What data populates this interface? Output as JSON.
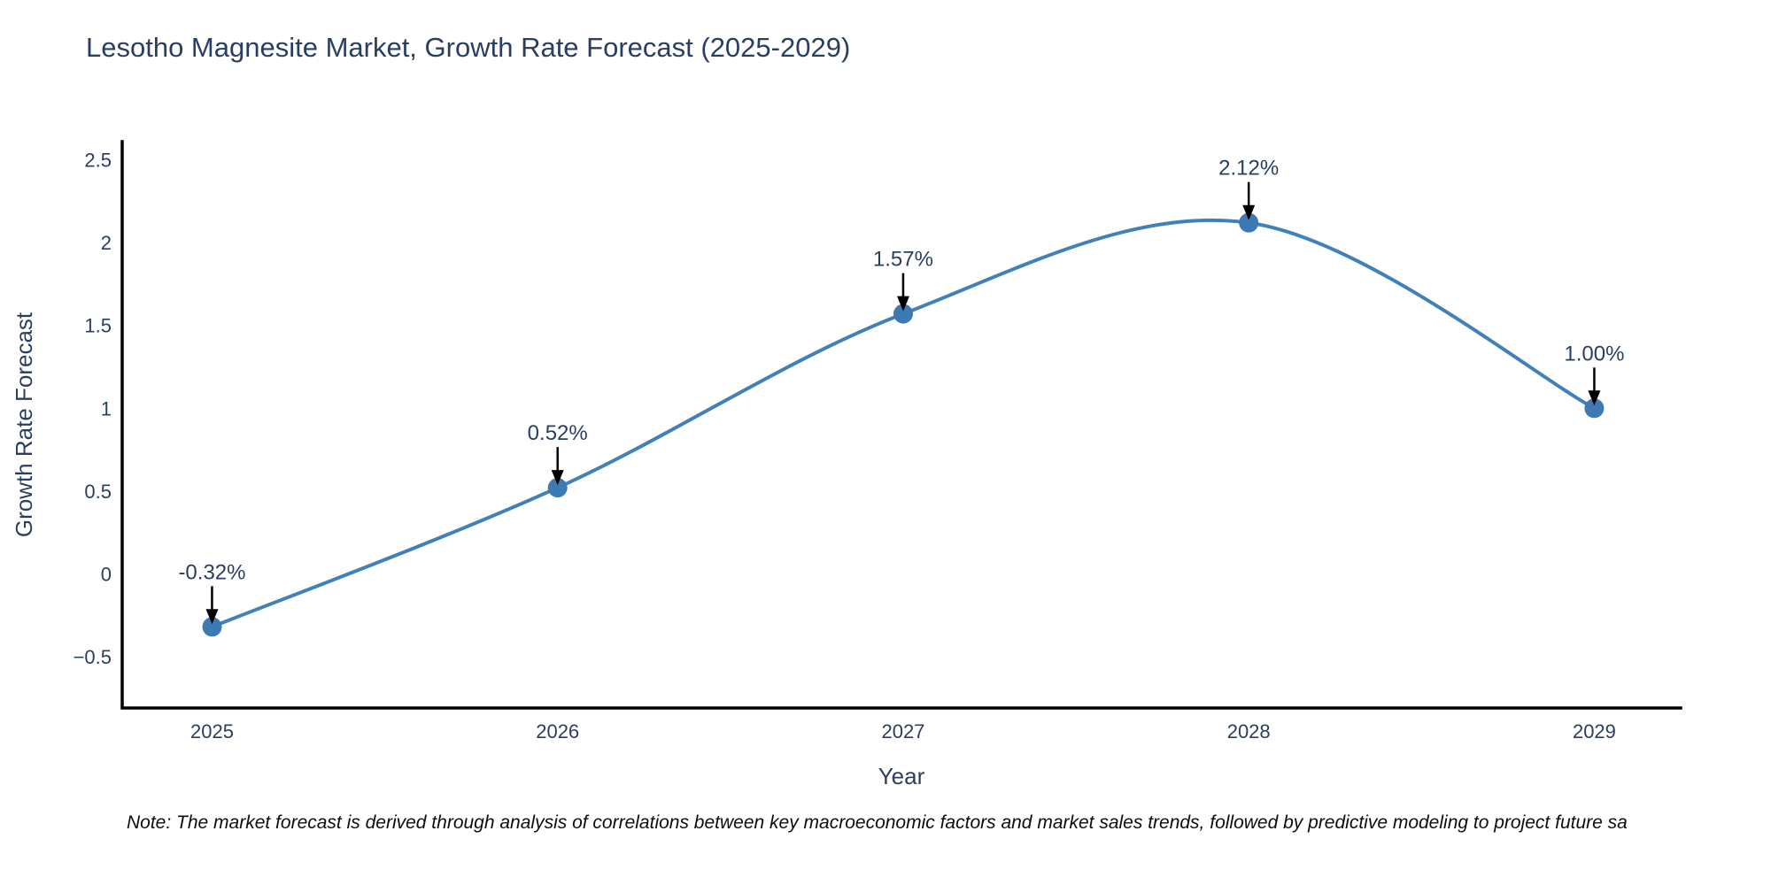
{
  "note": "Note: The market forecast is derived through analysis of correlations between key macroeconomic factors and market sales trends, followed by predictive modeling to project future sa",
  "colors": {
    "text": "#2a3f5f",
    "line": "#4181b8",
    "marker": "#3d7ab3",
    "spine": "#000000",
    "arrow": "#000000",
    "background": "#ffffff"
  },
  "chart_data": {
    "type": "line",
    "title": "Lesotho Magnesite Market, Growth Rate Forecast (2025-2029)",
    "xlabel": "Year",
    "ylabel": "Growth Rate Forecast",
    "x": [
      2025,
      2026,
      2027,
      2028,
      2029
    ],
    "values": [
      -0.32,
      0.52,
      1.57,
      2.12,
      1.0
    ],
    "point_labels": [
      "-0.32%",
      "0.52%",
      "1.57%",
      "2.12%",
      "1.00%"
    ],
    "xticks": [
      2025,
      2026,
      2027,
      2028,
      2029
    ],
    "xtick_labels": [
      "2025",
      "2026",
      "2027",
      "2028",
      "2029"
    ],
    "yticks": [
      -0.5,
      0,
      0.5,
      1,
      1.5,
      2,
      2.5
    ],
    "ytick_labels": [
      "−0.5",
      "0",
      "0.5",
      "1",
      "1.5",
      "2",
      "2.5"
    ],
    "xlim": [
      2024.74,
      2029.25
    ],
    "ylim": [
      -0.81,
      2.61
    ],
    "grid": false,
    "legend": false,
    "line_shape": "spline",
    "line_color": "#4181b8",
    "marker_color": "#3d7ab3"
  }
}
